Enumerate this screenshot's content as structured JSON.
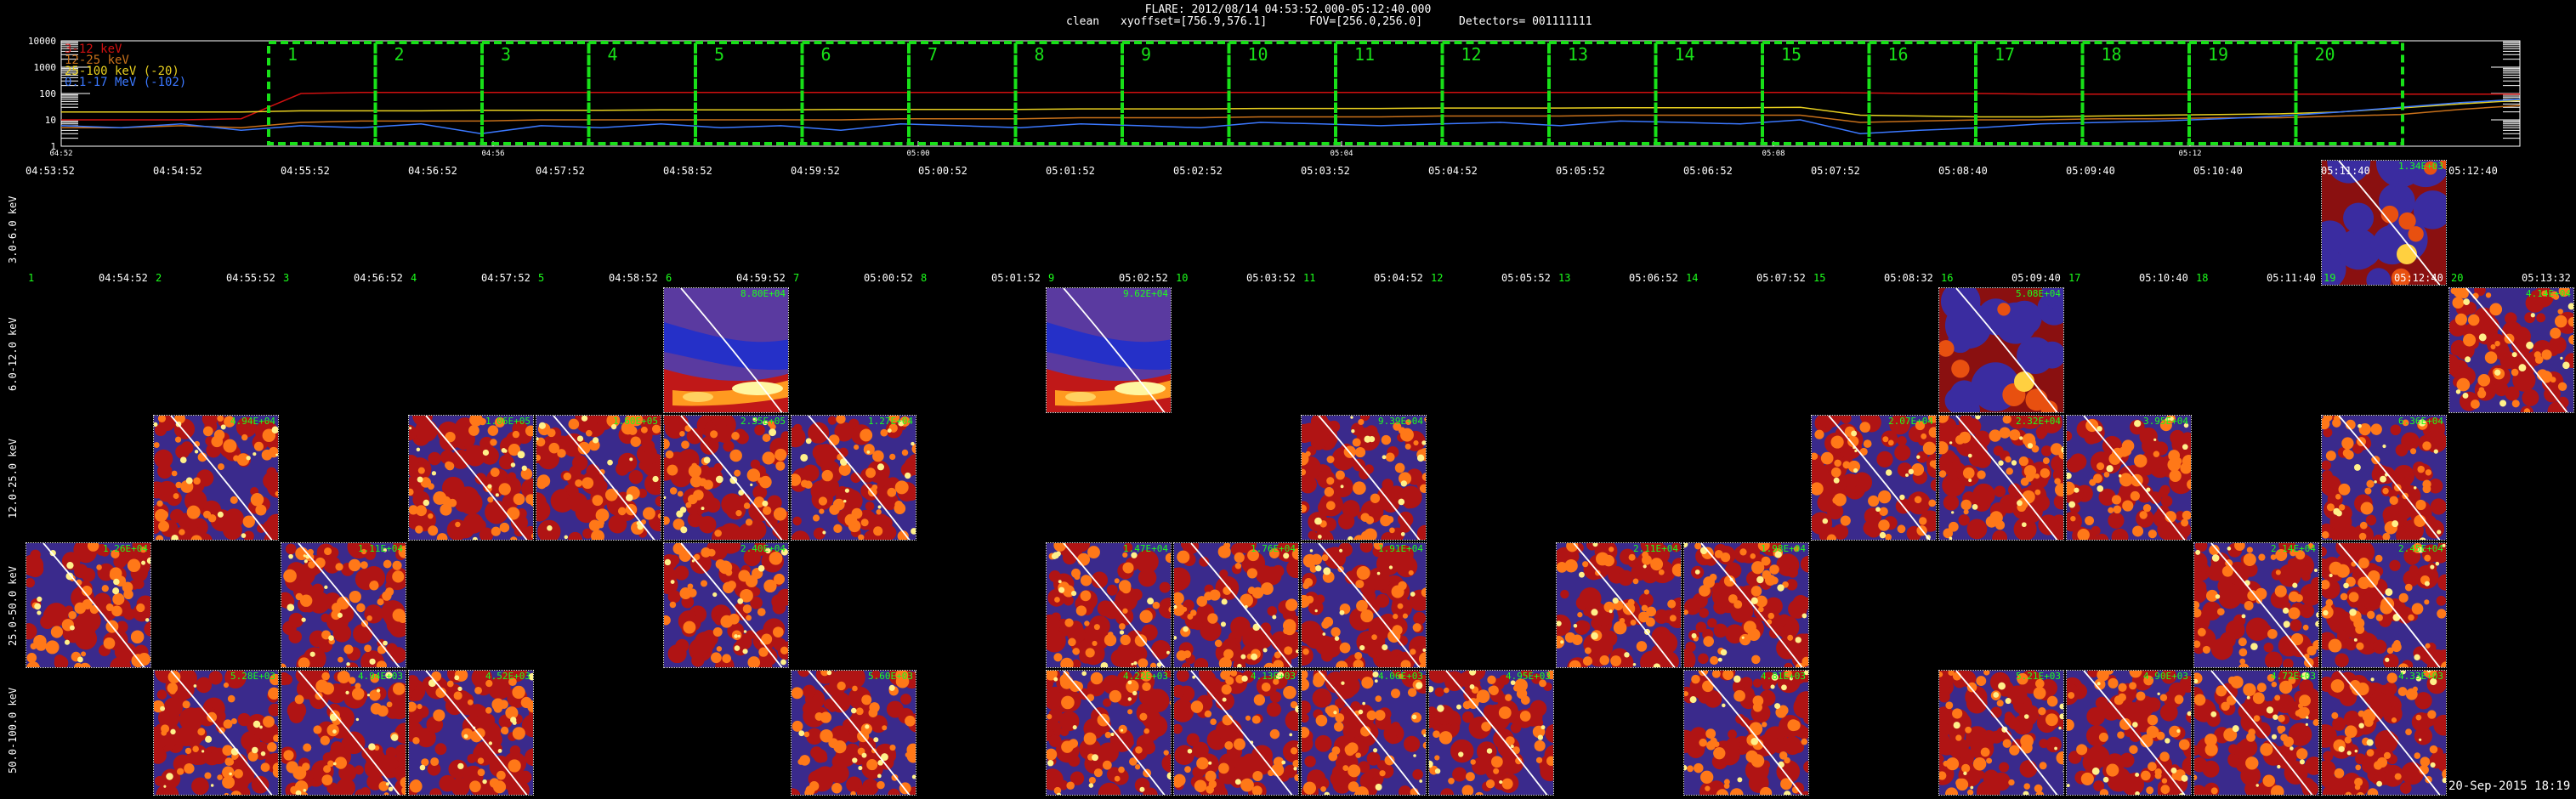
{
  "header": {
    "title": "FLARE: 2012/08/14 04:53:52.000-05:12:40.000",
    "subtitle_clean": "clean",
    "subtitle_xyoffset": "xyoffset=[756.9,576.1]",
    "subtitle_fov": "FOV=[256.0,256.0]",
    "subtitle_detectors": "Detectors= 001111111"
  },
  "footer": {
    "timestamp": "20-Sep-2015 18:19"
  },
  "chart_data": [
    {
      "type": "line",
      "yscale": "log",
      "ylim": [
        1,
        10000
      ],
      "y_ticks": [
        "10000",
        "1000",
        "100",
        "10",
        "1"
      ],
      "x_ticks": [
        "04:52",
        "04:56",
        "05:00",
        "05:04",
        "05:08",
        "05:12"
      ],
      "legend": [
        {
          "label": "3-12 keV",
          "color": "#d01010"
        },
        {
          "label": "12-25 keV",
          "color": "#c8701a"
        },
        {
          "label": "25-100 keV (-20)",
          "color": "#e8d020"
        },
        {
          "label": "0.1-17 MeV (-102)",
          "color": "#3b78ff"
        }
      ],
      "series": [
        {
          "name": "3-12 keV",
          "color": "#d01010",
          "values": [
            10,
            10,
            10,
            11,
            100,
            110,
            110,
            110,
            110,
            110,
            110,
            110,
            110,
            110,
            110,
            110,
            110,
            110,
            110,
            110,
            110,
            110,
            110,
            110,
            110,
            110,
            110,
            110,
            110,
            110,
            105,
            100,
            100,
            95,
            95,
            95,
            95,
            95,
            95,
            95,
            95,
            95
          ]
        },
        {
          "name": "12-25 keV",
          "color": "#c8701a",
          "values": [
            5,
            5,
            6,
            5,
            8,
            9,
            9,
            9,
            10,
            10,
            10,
            10,
            10,
            10,
            11,
            11,
            11,
            12,
            12,
            12,
            13,
            13,
            13,
            14,
            14,
            14,
            15,
            15,
            15,
            15,
            8,
            9,
            10,
            10,
            11,
            11,
            12,
            12,
            14,
            16,
            25,
            35
          ]
        },
        {
          "name": "25-100 keV (-20)",
          "color": "#e8d020",
          "values": [
            20,
            20,
            20,
            20,
            22,
            22,
            22,
            23,
            23,
            23,
            24,
            24,
            24,
            25,
            25,
            25,
            25,
            26,
            26,
            26,
            27,
            27,
            27,
            28,
            28,
            28,
            29,
            29,
            29,
            30,
            15,
            14,
            13,
            13,
            14,
            15,
            16,
            17,
            20,
            28,
            40,
            55
          ]
        },
        {
          "name": "0.1-17 MeV (-102)",
          "color": "#3b78ff",
          "values": [
            6,
            5,
            7,
            4,
            6,
            5,
            7,
            3,
            6,
            5,
            7,
            5,
            6,
            4,
            7,
            6,
            5,
            7,
            6,
            5,
            8,
            7,
            6,
            7,
            8,
            6,
            9,
            8,
            7,
            10,
            3,
            4,
            5,
            7,
            8,
            9,
            11,
            14,
            20,
            30,
            45,
            60
          ]
        }
      ],
      "intervals": [
        "1",
        "2",
        "3",
        "4",
        "5",
        "6",
        "7",
        "8",
        "9",
        "10",
        "11",
        "12",
        "13",
        "14",
        "15",
        "16",
        "17",
        "18",
        "19",
        "20"
      ]
    },
    {
      "type": "heatmap",
      "rows": [
        {
          "label": "3.0-6.0 keV",
          "times": [
            "04:53:52",
            "04:54:52",
            "04:55:52",
            "04:56:52",
            "04:57:52",
            "04:58:52",
            "04:59:52",
            "05:00:52",
            "05:01:52",
            "05:02:52",
            "05:03:52",
            "05:04:52",
            "05:05:52",
            "05:06:52",
            "05:07:52",
            "05:08:40",
            "05:09:40",
            "05:10:40",
            "05:11:40",
            "05:12:40"
          ],
          "tiles": [
            {
              "col": 18,
              "label": "1.34E+03",
              "style": "blob"
            }
          ]
        },
        {
          "label": "6.0-12.0 keV",
          "numbers": [
            "1",
            "2",
            "3",
            "4",
            "5",
            "6",
            "7",
            "8",
            "9",
            "10",
            "11",
            "12",
            "13",
            "14",
            "15",
            "16",
            "17",
            "18",
            "19",
            "20"
          ],
          "times": [
            "04:54:52",
            "04:55:52",
            "04:56:52",
            "04:57:52",
            "04:58:52",
            "04:59:52",
            "05:00:52",
            "05:01:52",
            "05:02:52",
            "05:03:52",
            "05:04:52",
            "05:05:52",
            "05:06:52",
            "05:07:52",
            "05:08:32",
            "05:09:40",
            "05:10:40",
            "05:11:40",
            "05:12:40",
            "05:13:32"
          ],
          "tiles": [
            {
              "col": 5,
              "label": "8.80E+04",
              "style": "band"
            },
            {
              "col": 8,
              "label": "9.62E+04",
              "style": "band"
            },
            {
              "col": 15,
              "label": "5.08E+04",
              "style": "blob"
            },
            {
              "col": 19,
              "label": "4.14E+04",
              "style": "speckle"
            }
          ]
        },
        {
          "label": "12.0-25.0 keV",
          "tiles": [
            {
              "col": 1,
              "label": "4.94E+04",
              "style": "speckle"
            },
            {
              "col": 3,
              "label": "1.06E+05",
              "style": "speckle"
            },
            {
              "col": 4,
              "label": "1.60E+05",
              "style": "speckle"
            },
            {
              "col": 5,
              "label": "2.35E+05",
              "style": "speckle"
            },
            {
              "col": 6,
              "label": "1.27E+04",
              "style": "speckle"
            },
            {
              "col": 10,
              "label": "9.39E+04",
              "style": "speckle"
            },
            {
              "col": 14,
              "label": "2.07E+04",
              "style": "speckle"
            },
            {
              "col": 15,
              "label": "2.32E+04",
              "style": "speckle"
            },
            {
              "col": 16,
              "label": "3.95E+04",
              "style": "speckle"
            },
            {
              "col": 18,
              "label": "6.36E+04",
              "style": "speckle"
            }
          ]
        },
        {
          "label": "25.0-50.0 keV",
          "tiles": [
            {
              "col": 0,
              "label": "1.26E+04",
              "style": "speckle"
            },
            {
              "col": 2,
              "label": "1.11E+04",
              "style": "speckle"
            },
            {
              "col": 5,
              "label": "2.40E+04",
              "style": "speckle"
            },
            {
              "col": 8,
              "label": "1.47E+04",
              "style": "speckle"
            },
            {
              "col": 9,
              "label": "1.76E+04",
              "style": "speckle"
            },
            {
              "col": 10,
              "label": "1.91E+04",
              "style": "speckle"
            },
            {
              "col": 12,
              "label": "2.11E+04",
              "style": "speckle"
            },
            {
              "col": 13,
              "label": "1.98E+04",
              "style": "speckle"
            },
            {
              "col": 17,
              "label": "2.14E+04",
              "style": "speckle"
            },
            {
              "col": 18,
              "label": "2.45E+04",
              "style": "speckle"
            }
          ]
        },
        {
          "label": "50.0-100.0 keV",
          "tiles": [
            {
              "col": 1,
              "label": "5.28E+03",
              "style": "speckle"
            },
            {
              "col": 2,
              "label": "4.94E+03",
              "style": "speckle"
            },
            {
              "col": 3,
              "label": "4.52E+03",
              "style": "speckle"
            },
            {
              "col": 6,
              "label": "5.60E+03",
              "style": "speckle"
            },
            {
              "col": 8,
              "label": "4.22E+03",
              "style": "speckle"
            },
            {
              "col": 9,
              "label": "4.13E+03",
              "style": "speckle"
            },
            {
              "col": 10,
              "label": "4.06E+03",
              "style": "speckle"
            },
            {
              "col": 11,
              "label": "4.95E+03",
              "style": "speckle"
            },
            {
              "col": 13,
              "label": "4.81E+03",
              "style": "speckle"
            },
            {
              "col": 15,
              "label": "5.21E+03",
              "style": "speckle"
            },
            {
              "col": 16,
              "label": "4.90E+03",
              "style": "speckle"
            },
            {
              "col": 17,
              "label": "4.72E+03",
              "style": "speckle"
            },
            {
              "col": 18,
              "label": "4.33E+03",
              "style": "speckle"
            }
          ]
        }
      ]
    }
  ]
}
